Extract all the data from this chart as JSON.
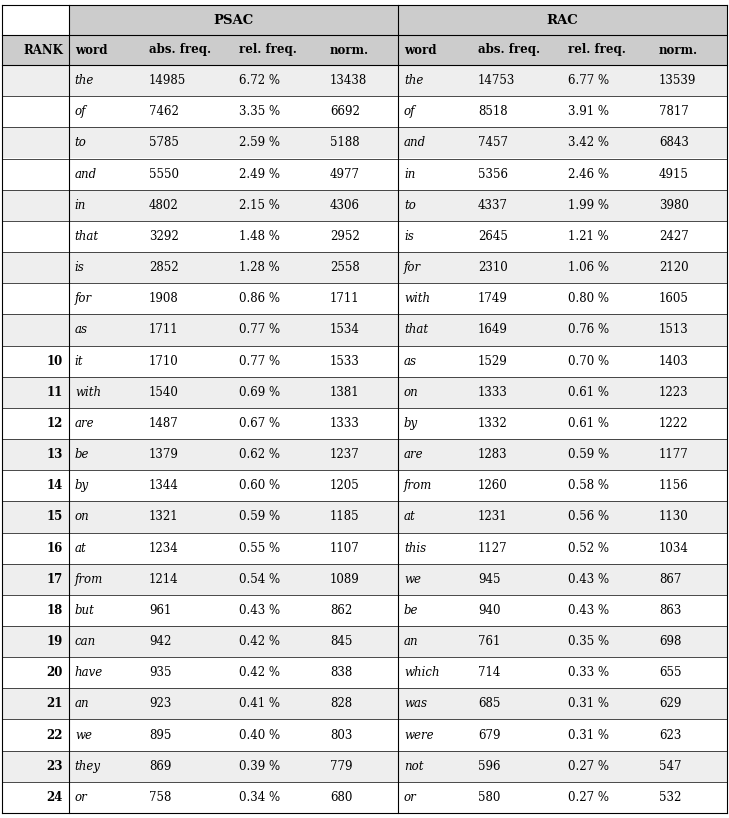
{
  "col_headers": [
    "RANK",
    "word",
    "abs. freq.",
    "rel. freq.",
    "norm.",
    "word",
    "abs. freq.",
    "rel. freq.",
    "norm."
  ],
  "rows": [
    [
      "",
      "the",
      "14985",
      "6.72 %",
      "13438",
      "the",
      "14753",
      "6.77 %",
      "13539"
    ],
    [
      "",
      "of",
      "7462",
      "3.35 %",
      "6692",
      "of",
      "8518",
      "3.91 %",
      "7817"
    ],
    [
      "",
      "to",
      "5785",
      "2.59 %",
      "5188",
      "and",
      "7457",
      "3.42 %",
      "6843"
    ],
    [
      "",
      "and",
      "5550",
      "2.49 %",
      "4977",
      "in",
      "5356",
      "2.46 %",
      "4915"
    ],
    [
      "",
      "in",
      "4802",
      "2.15 %",
      "4306",
      "to",
      "4337",
      "1.99 %",
      "3980"
    ],
    [
      "",
      "that",
      "3292",
      "1.48 %",
      "2952",
      "is",
      "2645",
      "1.21 %",
      "2427"
    ],
    [
      "",
      "is",
      "2852",
      "1.28 %",
      "2558",
      "for",
      "2310",
      "1.06 %",
      "2120"
    ],
    [
      "",
      "for",
      "1908",
      "0.86 %",
      "1711",
      "with",
      "1749",
      "0.80 %",
      "1605"
    ],
    [
      "",
      "as",
      "1711",
      "0.77 %",
      "1534",
      "that",
      "1649",
      "0.76 %",
      "1513"
    ],
    [
      "10",
      "it",
      "1710",
      "0.77 %",
      "1533",
      "as",
      "1529",
      "0.70 %",
      "1403"
    ],
    [
      "11",
      "with",
      "1540",
      "0.69 %",
      "1381",
      "on",
      "1333",
      "0.61 %",
      "1223"
    ],
    [
      "12",
      "are",
      "1487",
      "0.67 %",
      "1333",
      "by",
      "1332",
      "0.61 %",
      "1222"
    ],
    [
      "13",
      "be",
      "1379",
      "0.62 %",
      "1237",
      "are",
      "1283",
      "0.59 %",
      "1177"
    ],
    [
      "14",
      "by",
      "1344",
      "0.60 %",
      "1205",
      "from",
      "1260",
      "0.58 %",
      "1156"
    ],
    [
      "15",
      "on",
      "1321",
      "0.59 %",
      "1185",
      "at",
      "1231",
      "0.56 %",
      "1130"
    ],
    [
      "16",
      "at",
      "1234",
      "0.55 %",
      "1107",
      "this",
      "1127",
      "0.52 %",
      "1034"
    ],
    [
      "17",
      "from",
      "1214",
      "0.54 %",
      "1089",
      "we",
      "945",
      "0.43 %",
      "867"
    ],
    [
      "18",
      "but",
      "961",
      "0.43 %",
      "862",
      "be",
      "940",
      "0.43 %",
      "863"
    ],
    [
      "19",
      "can",
      "942",
      "0.42 %",
      "845",
      "an",
      "761",
      "0.35 %",
      "698"
    ],
    [
      "20",
      "have",
      "935",
      "0.42 %",
      "838",
      "which",
      "714",
      "0.33 %",
      "655"
    ],
    [
      "21",
      "an",
      "923",
      "0.41 %",
      "828",
      "was",
      "685",
      "0.31 %",
      "629"
    ],
    [
      "22",
      "we",
      "895",
      "0.40 %",
      "803",
      "were",
      "679",
      "0.31 %",
      "623"
    ],
    [
      "23",
      "they",
      "869",
      "0.39 %",
      "779",
      "not",
      "596",
      "0.27 %",
      "547"
    ],
    [
      "24",
      "or",
      "758",
      "0.34 %",
      "680",
      "or",
      "580",
      "0.27 %",
      "532"
    ]
  ],
  "bg_color_even": "#eeeeee",
  "bg_color_odd": "#ffffff",
  "header_bg": "#cccccc",
  "rank_header_bg": "#ffffff",
  "line_color": "#000000",
  "psac_label": "PSAC",
  "rac_label": "RAC",
  "figsize": [
    7.29,
    8.18
  ],
  "dpi": 100
}
